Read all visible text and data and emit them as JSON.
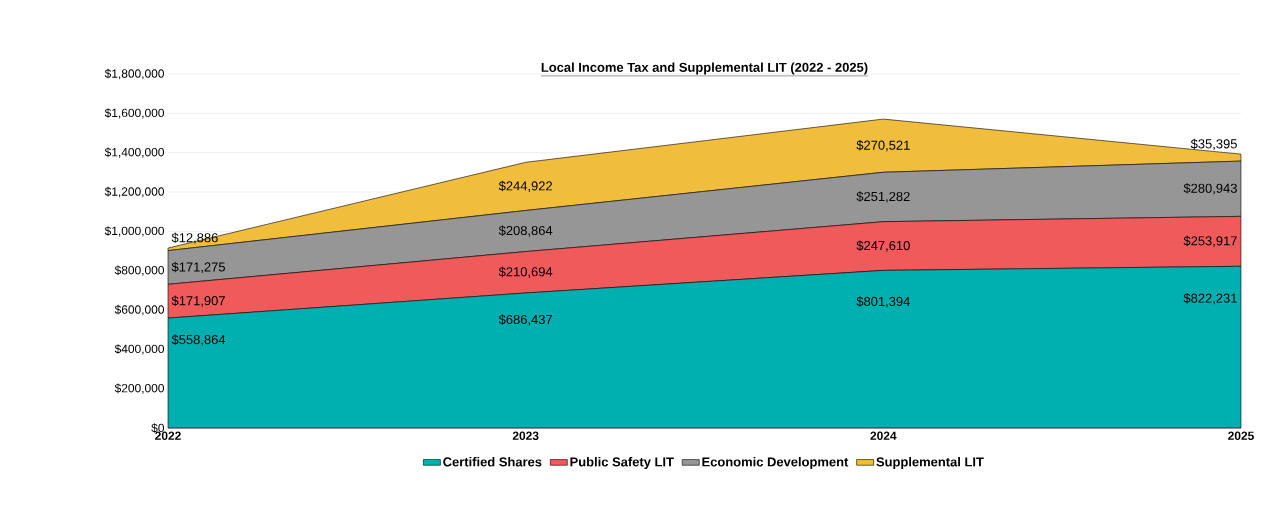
{
  "chart_data": {
    "type": "area",
    "stacked": true,
    "title": "Local Income Tax and Supplemental LIT (2022 - 2025)",
    "categories": [
      "2022",
      "2023",
      "2024",
      "2025"
    ],
    "series": [
      {
        "name": "Certified Shares",
        "color": "#00b0b0",
        "values": [
          558864,
          686437,
          801394,
          822231
        ],
        "value_labels": [
          "$558,864",
          "$686,437",
          "$801,394",
          "$822,231"
        ]
      },
      {
        "name": "Public Safety LIT",
        "color": "#f05a5a",
        "values": [
          171907,
          210694,
          247610,
          253917
        ],
        "value_labels": [
          "$171,907",
          "$210,694",
          "$247,610",
          "$253,917"
        ]
      },
      {
        "name": "Economic Development",
        "color": "#969696",
        "values": [
          171275,
          208864,
          251282,
          280943
        ],
        "value_labels": [
          "$171,275",
          "$208,864",
          "$251,282",
          "$280,943"
        ]
      },
      {
        "name": "Supplemental LIT",
        "color": "#f0be3c",
        "values": [
          12886,
          244922,
          270521,
          35395
        ],
        "value_labels": [
          "$12,886",
          "$244,922",
          "$270,521",
          "$35,395"
        ]
      }
    ],
    "ylim": [
      0,
      1800000
    ],
    "yticks": [
      {
        "value": 0,
        "label": "$0"
      },
      {
        "value": 200000,
        "label": "$200,000"
      },
      {
        "value": 400000,
        "label": "$400,000"
      },
      {
        "value": 600000,
        "label": "$600,000"
      },
      {
        "value": 800000,
        "label": "$800,000"
      },
      {
        "value": 1000000,
        "label": "$1,000,000"
      },
      {
        "value": 1200000,
        "label": "$1,200,000"
      },
      {
        "value": 1400000,
        "label": "$1,400,000"
      },
      {
        "value": 1600000,
        "label": "$1,600,000"
      },
      {
        "value": 1800000,
        "label": "$1,800,000"
      }
    ],
    "grid": "y",
    "legend": "bottom",
    "data_labels": true
  }
}
